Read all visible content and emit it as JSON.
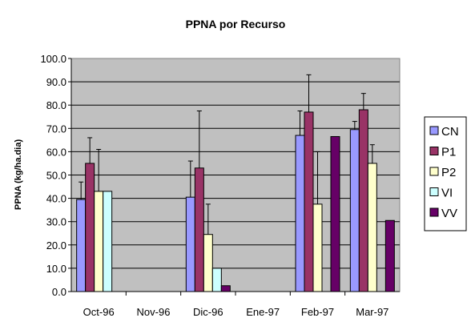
{
  "chart_data": {
    "type": "bar",
    "title": "PPNA por Recurso",
    "xlabel": "",
    "ylabel": "PPNA (kg/ha.dia)",
    "ylim": [
      0,
      100
    ],
    "y_ticks": [
      "0.0",
      "10.0",
      "20.0",
      "30.0",
      "40.0",
      "50.0",
      "60.0",
      "70.0",
      "80.0",
      "90.0",
      "100.0"
    ],
    "categories": [
      "Oct-96",
      "Nov-96",
      "Dic-96",
      "Ene-97",
      "Feb-97",
      "Mar-97"
    ],
    "grid": true,
    "legend_position": "right",
    "plot_background": "#c0c0c0",
    "series": [
      {
        "name": "CN",
        "color": "#9999ff",
        "values": [
          39.5,
          null,
          40.5,
          null,
          67.0,
          69.5
        ],
        "error_high": [
          47.0,
          null,
          56.0,
          null,
          77.5,
          73.0
        ]
      },
      {
        "name": "P1",
        "color": "#993366",
        "values": [
          55.0,
          null,
          53.0,
          null,
          77.0,
          78.0
        ],
        "error_high": [
          66.0,
          null,
          77.5,
          null,
          93.0,
          85.0
        ]
      },
      {
        "name": "P2",
        "color": "#ffffcc",
        "values": [
          43.0,
          null,
          24.5,
          null,
          37.5,
          55.0
        ],
        "error_high": [
          61.0,
          null,
          37.5,
          null,
          60.0,
          63.0
        ]
      },
      {
        "name": "VI",
        "color": "#ccffff",
        "values": [
          43.0,
          null,
          10.0,
          null,
          null,
          null
        ],
        "error_high": [
          null,
          null,
          null,
          null,
          null,
          null
        ]
      },
      {
        "name": "VV",
        "color": "#660066",
        "values": [
          null,
          null,
          2.5,
          null,
          66.5,
          30.5
        ],
        "error_high": [
          null,
          null,
          null,
          null,
          null,
          null
        ]
      }
    ]
  }
}
